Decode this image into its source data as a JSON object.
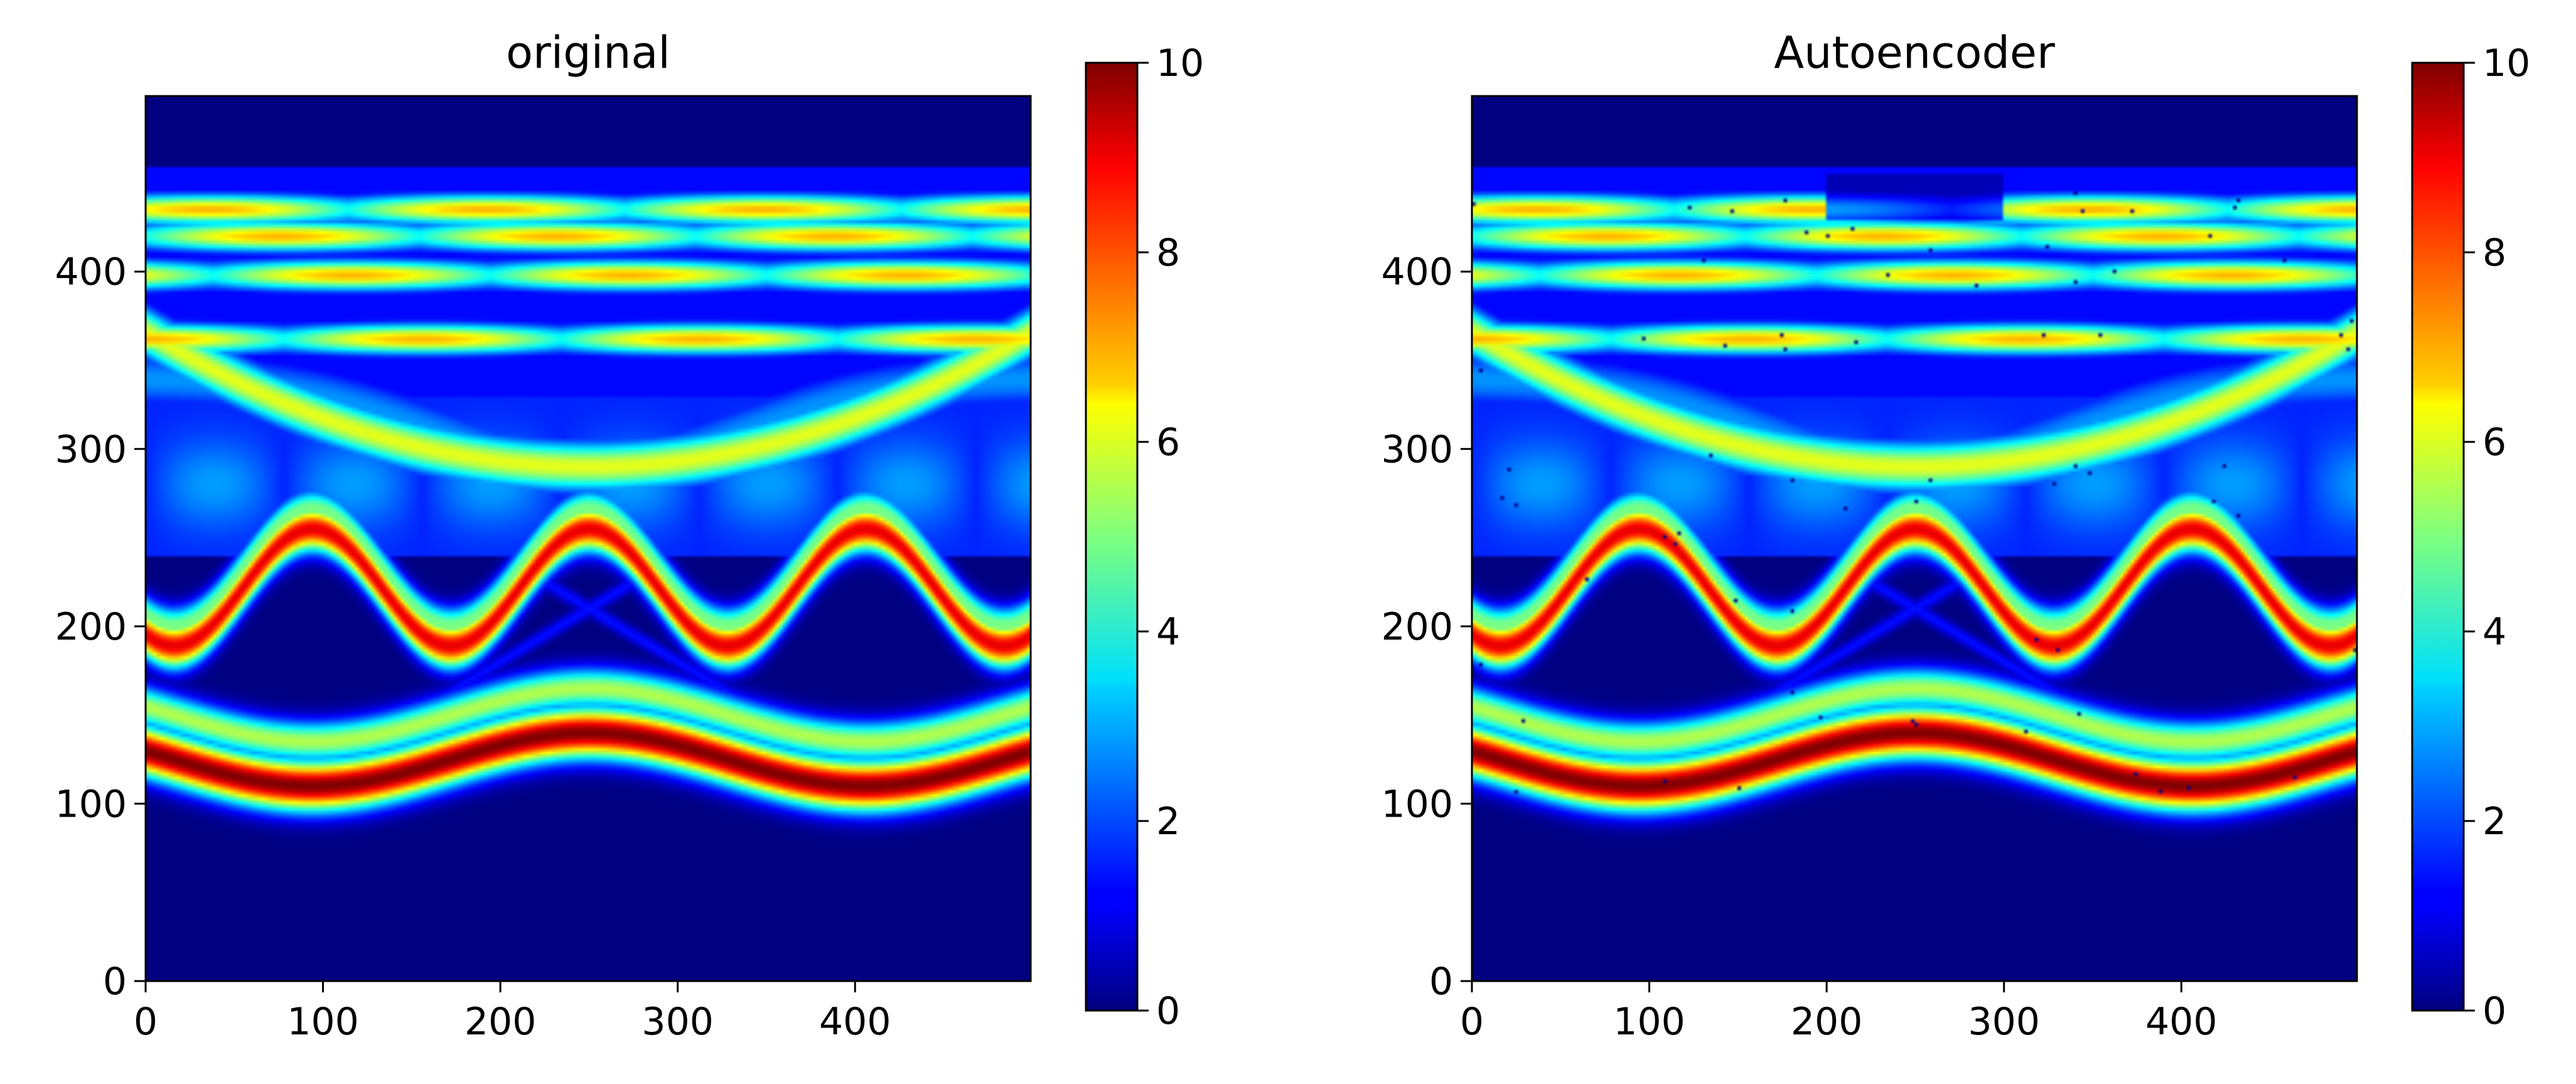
{
  "chart_data": [
    {
      "type": "heatmap",
      "title": "original",
      "xlabel": "",
      "ylabel": "",
      "xlim": [
        0,
        499
      ],
      "ylim": [
        0,
        499
      ],
      "xticks": [
        0,
        100,
        200,
        300,
        400
      ],
      "yticks": [
        0,
        100,
        200,
        300,
        400
      ],
      "colormap": "jet",
      "colorbar": {
        "range": [
          0,
          10
        ],
        "ticks": [
          0,
          2,
          4,
          6,
          8,
          10
        ]
      },
      "series": [
        {
          "name": "lower band",
          "kind": "sinusoid",
          "center": 125,
          "amplitude": 15,
          "period": 312,
          "phase_x": 94,
          "width": 18,
          "peak": 10,
          "secondary_offset": 25
        },
        {
          "name": "middle band",
          "kind": "sinusoid",
          "center": 222,
          "amplitude": 33,
          "period": 156,
          "phase_x": 172,
          "width": 16,
          "peak": 9,
          "secondary_offset": 12
        },
        {
          "name": "upper arc",
          "kind": "arc",
          "center_x": 250,
          "top": 340,
          "base": 290,
          "width": 10,
          "peak": 6
        },
        {
          "name": "upper bands",
          "kind": "horizontal",
          "y_values": [
            362,
            398,
            420,
            435
          ],
          "peak": 7
        }
      ]
    },
    {
      "type": "heatmap",
      "title": "Autoencoder",
      "xlabel": "",
      "ylabel": "",
      "xlim": [
        0,
        499
      ],
      "ylim": [
        0,
        499
      ],
      "xticks": [
        0,
        100,
        200,
        300,
        400
      ],
      "yticks": [
        0,
        100,
        200,
        300,
        400
      ],
      "colormap": "jet",
      "colorbar": {
        "range": [
          0,
          10
        ],
        "ticks": [
          0,
          2,
          4,
          6,
          8,
          10
        ]
      },
      "series": [
        {
          "name": "lower band",
          "kind": "sinusoid",
          "center": 125,
          "amplitude": 15,
          "period": 312,
          "phase_x": 94,
          "width": 18,
          "peak": 10,
          "secondary_offset": 25
        },
        {
          "name": "middle band",
          "kind": "sinusoid",
          "center": 222,
          "amplitude": 33,
          "period": 156,
          "phase_x": 172,
          "width": 16,
          "peak": 9,
          "secondary_offset": 12
        },
        {
          "name": "upper arc",
          "kind": "arc",
          "center_x": 250,
          "top": 340,
          "base": 290,
          "width": 10,
          "peak": 6
        },
        {
          "name": "upper bands",
          "kind": "horizontal",
          "y_values": [
            362,
            398,
            420,
            435
          ],
          "peak": 7
        }
      ]
    }
  ],
  "colors": {
    "jet_low": "#00007f",
    "jet_high": "#7f0000"
  }
}
